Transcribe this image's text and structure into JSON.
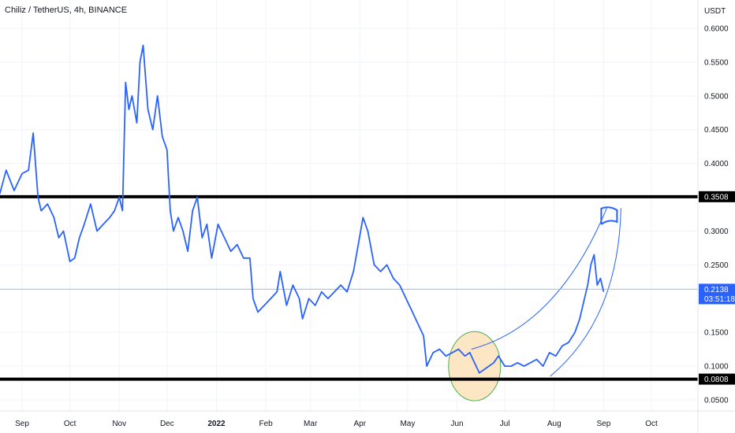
{
  "header": {
    "title": "Chiliz / TetherUS, 4h, BINANCE",
    "currency": "USDT"
  },
  "colors": {
    "price_line": "#2962ff",
    "level_line": "#000000",
    "current_line": "#90bff9",
    "current_badge": "#2962ff",
    "level_badge": "#000000",
    "circle_fill": "#fde6c3",
    "circle_stroke": "#4caf50",
    "grid": "#f0f3fa",
    "axis_text": "#131722"
  },
  "price_badges": {
    "current_price": "0.2138",
    "countdown": "03:51:18",
    "resistance": "0.3508",
    "support": "0.0808"
  },
  "chart_data": {
    "type": "line",
    "title": "Chiliz / TetherUS, 4h, BINANCE",
    "ylabel": "USDT",
    "ylim": [
      0.02,
      0.62
    ],
    "y_ticks": [
      "0.6000",
      "0.5500",
      "0.5000",
      "0.4500",
      "0.4000",
      "0.3000",
      "0.2500",
      "0.1500",
      "0.1000",
      "0.0500"
    ],
    "x_ticks": [
      "Sep",
      "Oct",
      "Nov",
      "Dec",
      "2022",
      "Feb",
      "Mar",
      "Apr",
      "May",
      "Jun",
      "Jul",
      "Aug",
      "Sep",
      "Oct"
    ],
    "x_tick_dates": [
      "2021-09-01",
      "2021-10-01",
      "2021-11-01",
      "2021-12-01",
      "2022-01-01",
      "2022-02-01",
      "2022-03-01",
      "2022-04-01",
      "2022-05-01",
      "2022-06-01",
      "2022-07-01",
      "2022-08-01",
      "2022-09-01",
      "2022-10-01"
    ],
    "series": [
      {
        "x": [
          "2021-08-18",
          "2021-08-22",
          "2021-08-27",
          "2021-09-01",
          "2021-09-05",
          "2021-09-08",
          "2021-09-11",
          "2021-09-13",
          "2021-09-17",
          "2021-09-21",
          "2021-09-24",
          "2021-09-27",
          "2021-10-01",
          "2021-10-04",
          "2021-10-07",
          "2021-10-10",
          "2021-10-14",
          "2021-10-18",
          "2021-10-22",
          "2021-10-26",
          "2021-10-29",
          "2021-11-01",
          "2021-11-03",
          "2021-11-05",
          "2021-11-07",
          "2021-11-09",
          "2021-11-12",
          "2021-11-14",
          "2021-11-16",
          "2021-11-19",
          "2021-11-22",
          "2021-11-25",
          "2021-11-28",
          "2021-12-01",
          "2021-12-03",
          "2021-12-05",
          "2021-12-08",
          "2021-12-11",
          "2021-12-14",
          "2021-12-17",
          "2021-12-20",
          "2021-12-23",
          "2021-12-26",
          "2021-12-29",
          "2022-01-02",
          "2022-01-06",
          "2022-01-10",
          "2022-01-14",
          "2022-01-18",
          "2022-01-22",
          "2022-01-24",
          "2022-01-27",
          "2022-01-31",
          "2022-02-04",
          "2022-02-08",
          "2022-02-10",
          "2022-02-14",
          "2022-02-18",
          "2022-02-22",
          "2022-02-24",
          "2022-02-28",
          "2022-03-04",
          "2022-03-08",
          "2022-03-12",
          "2022-03-16",
          "2022-03-20",
          "2022-03-24",
          "2022-03-28",
          "2022-03-31",
          "2022-04-03",
          "2022-04-06",
          "2022-04-10",
          "2022-04-14",
          "2022-04-18",
          "2022-04-22",
          "2022-04-26",
          "2022-04-30",
          "2022-05-04",
          "2022-05-08",
          "2022-05-11",
          "2022-05-13",
          "2022-05-17",
          "2022-05-21",
          "2022-05-25",
          "2022-05-29",
          "2022-06-02",
          "2022-06-06",
          "2022-06-09",
          "2022-06-11",
          "2022-06-13",
          "2022-06-15",
          "2022-06-18",
          "2022-06-21",
          "2022-06-24",
          "2022-06-27",
          "2022-07-01",
          "2022-07-05",
          "2022-07-09",
          "2022-07-13",
          "2022-07-17",
          "2022-07-21",
          "2022-07-25",
          "2022-07-29",
          "2022-08-02",
          "2022-08-06",
          "2022-08-10",
          "2022-08-14",
          "2022-08-17",
          "2022-08-20",
          "2022-08-22",
          "2022-08-24",
          "2022-08-26",
          "2022-08-28",
          "2022-08-30",
          "2022-09-01"
        ],
        "values": [
          0.355,
          0.39,
          0.36,
          0.385,
          0.39,
          0.445,
          0.35,
          0.33,
          0.34,
          0.32,
          0.29,
          0.3,
          0.255,
          0.26,
          0.29,
          0.31,
          0.34,
          0.3,
          0.31,
          0.32,
          0.33,
          0.35,
          0.33,
          0.52,
          0.48,
          0.5,
          0.46,
          0.55,
          0.575,
          0.48,
          0.45,
          0.5,
          0.44,
          0.42,
          0.33,
          0.3,
          0.32,
          0.3,
          0.27,
          0.33,
          0.35,
          0.29,
          0.31,
          0.26,
          0.31,
          0.29,
          0.27,
          0.28,
          0.26,
          0.26,
          0.2,
          0.18,
          0.19,
          0.2,
          0.21,
          0.24,
          0.19,
          0.22,
          0.2,
          0.17,
          0.2,
          0.19,
          0.21,
          0.2,
          0.21,
          0.22,
          0.21,
          0.24,
          0.28,
          0.32,
          0.3,
          0.25,
          0.24,
          0.25,
          0.23,
          0.22,
          0.2,
          0.18,
          0.16,
          0.145,
          0.1,
          0.12,
          0.125,
          0.115,
          0.12,
          0.125,
          0.115,
          0.12,
          0.11,
          0.1,
          0.09,
          0.095,
          0.1,
          0.105,
          0.115,
          0.1,
          0.1,
          0.105,
          0.1,
          0.105,
          0.11,
          0.1,
          0.12,
          0.115,
          0.13,
          0.135,
          0.15,
          0.17,
          0.2,
          0.22,
          0.25,
          0.265,
          0.22,
          0.23,
          0.21
        ]
      }
    ],
    "levels": [
      0.3508,
      0.0808
    ],
    "current_price": 0.2138,
    "annotations": [
      {
        "type": "ellipse",
        "center": [
          "2022-06-12",
          0.1
        ],
        "description": "highlight"
      },
      {
        "type": "arc-channel",
        "from": [
          "2022-06-10",
          0.125
        ],
        "to": [
          "2022-08-31",
          0.32
        ]
      },
      {
        "type": "flag",
        "at": [
          "2022-08-31",
          0.31
        ]
      }
    ],
    "grid": true
  }
}
